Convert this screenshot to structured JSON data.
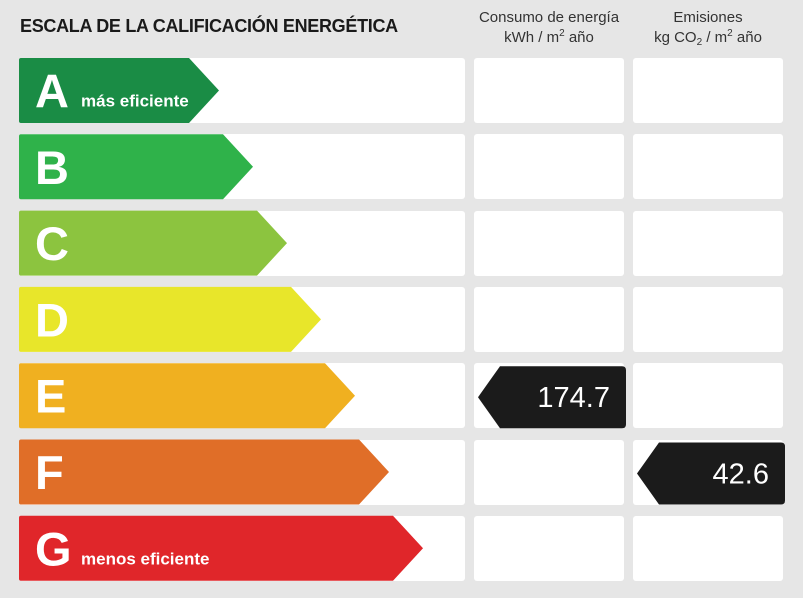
{
  "header": {
    "title": "ESCALA DE LA CALIFICACIÓN ENERGÉTICA",
    "consumo_line1": "Consumo de energía",
    "consumo_unit_pre": "kWh / m",
    "consumo_unit_sup": "2",
    "consumo_unit_post": " año",
    "emisiones_line1": "Emisiones",
    "emisiones_unit_pre": "kg CO",
    "emisiones_unit_sub": "2",
    "emisiones_unit_mid": " / m",
    "emisiones_unit_sup": "2",
    "emisiones_unit_post": " año"
  },
  "chart_data": {
    "type": "table",
    "title": "ESCALA DE LA CALIFICACIÓN ENERGÉTICA",
    "categories": [
      "A",
      "B",
      "C",
      "D",
      "E",
      "F",
      "G"
    ],
    "colors": [
      "#1a8c45",
      "#2fb24a",
      "#8cc43f",
      "#e8e62a",
      "#f0b020",
      "#e06e28",
      "#e0262a"
    ],
    "captions": {
      "A": "más eficiente",
      "G": "menos eficiente"
    },
    "columns": [
      "Consumo de energía kWh / m2 año",
      "Emisiones kg CO2 / m2 año"
    ],
    "ratings": [
      {
        "column": "Consumo de energía kWh / m2 año",
        "class": "E",
        "value": 174.7,
        "label": "174.7"
      },
      {
        "column": "Emisiones kg CO2 / m2 año",
        "class": "F",
        "value": 42.6,
        "label": "42.6"
      }
    ]
  }
}
